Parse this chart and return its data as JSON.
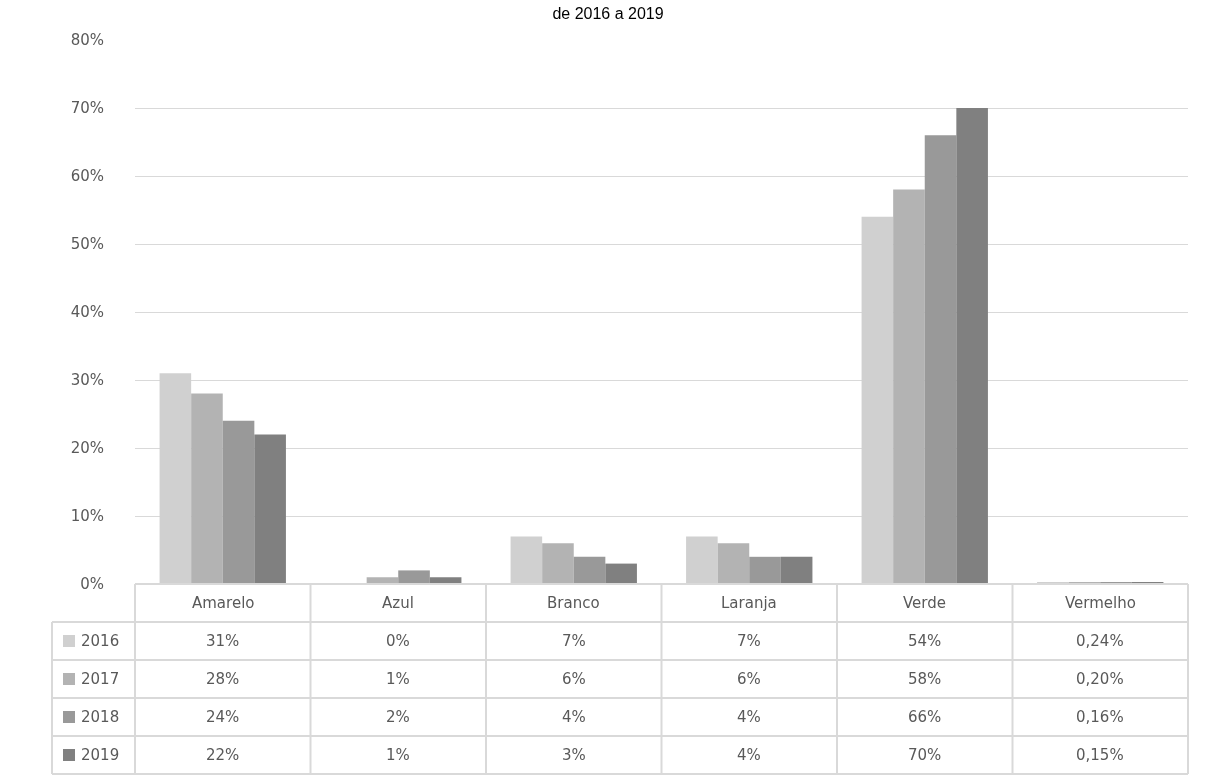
{
  "chart_data": {
    "type": "bar",
    "title": "de 2016 a 2019",
    "categories": [
      "Amarelo",
      "Azul",
      "Branco",
      "Laranja",
      "Verde",
      "Vermelho"
    ],
    "series": [
      {
        "name": "2016",
        "color": "#d0d0d0",
        "values": [
          31,
          0,
          7,
          7,
          54,
          0.24
        ],
        "value_labels": [
          "31%",
          "0%",
          "7%",
          "7%",
          "54%",
          "0,24%"
        ]
      },
      {
        "name": "2017",
        "color": "#b3b3b3",
        "values": [
          28,
          1,
          6,
          6,
          58,
          0.2
        ],
        "value_labels": [
          "28%",
          "1%",
          "6%",
          "6%",
          "58%",
          "0,20%"
        ]
      },
      {
        "name": "2018",
        "color": "#999999",
        "values": [
          24,
          2,
          4,
          4,
          66,
          0.16
        ],
        "value_labels": [
          "24%",
          "2%",
          "4%",
          "4%",
          "66%",
          "0,16%"
        ]
      },
      {
        "name": "2019",
        "color": "#808080",
        "values": [
          22,
          1,
          3,
          4,
          70,
          0.15
        ],
        "value_labels": [
          "22%",
          "1%",
          "3%",
          "4%",
          "70%",
          "0,15%"
        ]
      }
    ],
    "ylim": [
      0,
      80
    ],
    "yticks": [
      {
        "value": 0,
        "label": "0%"
      },
      {
        "value": 10,
        "label": "10%"
      },
      {
        "value": 20,
        "label": "20%"
      },
      {
        "value": 30,
        "label": "30%"
      },
      {
        "value": 40,
        "label": "40%"
      },
      {
        "value": 50,
        "label": "50%"
      },
      {
        "value": 60,
        "label": "60%"
      },
      {
        "value": 70,
        "label": "70%"
      },
      {
        "value": 80,
        "label": "80%"
      }
    ],
    "grid": "y",
    "legend": "bottom left"
  }
}
